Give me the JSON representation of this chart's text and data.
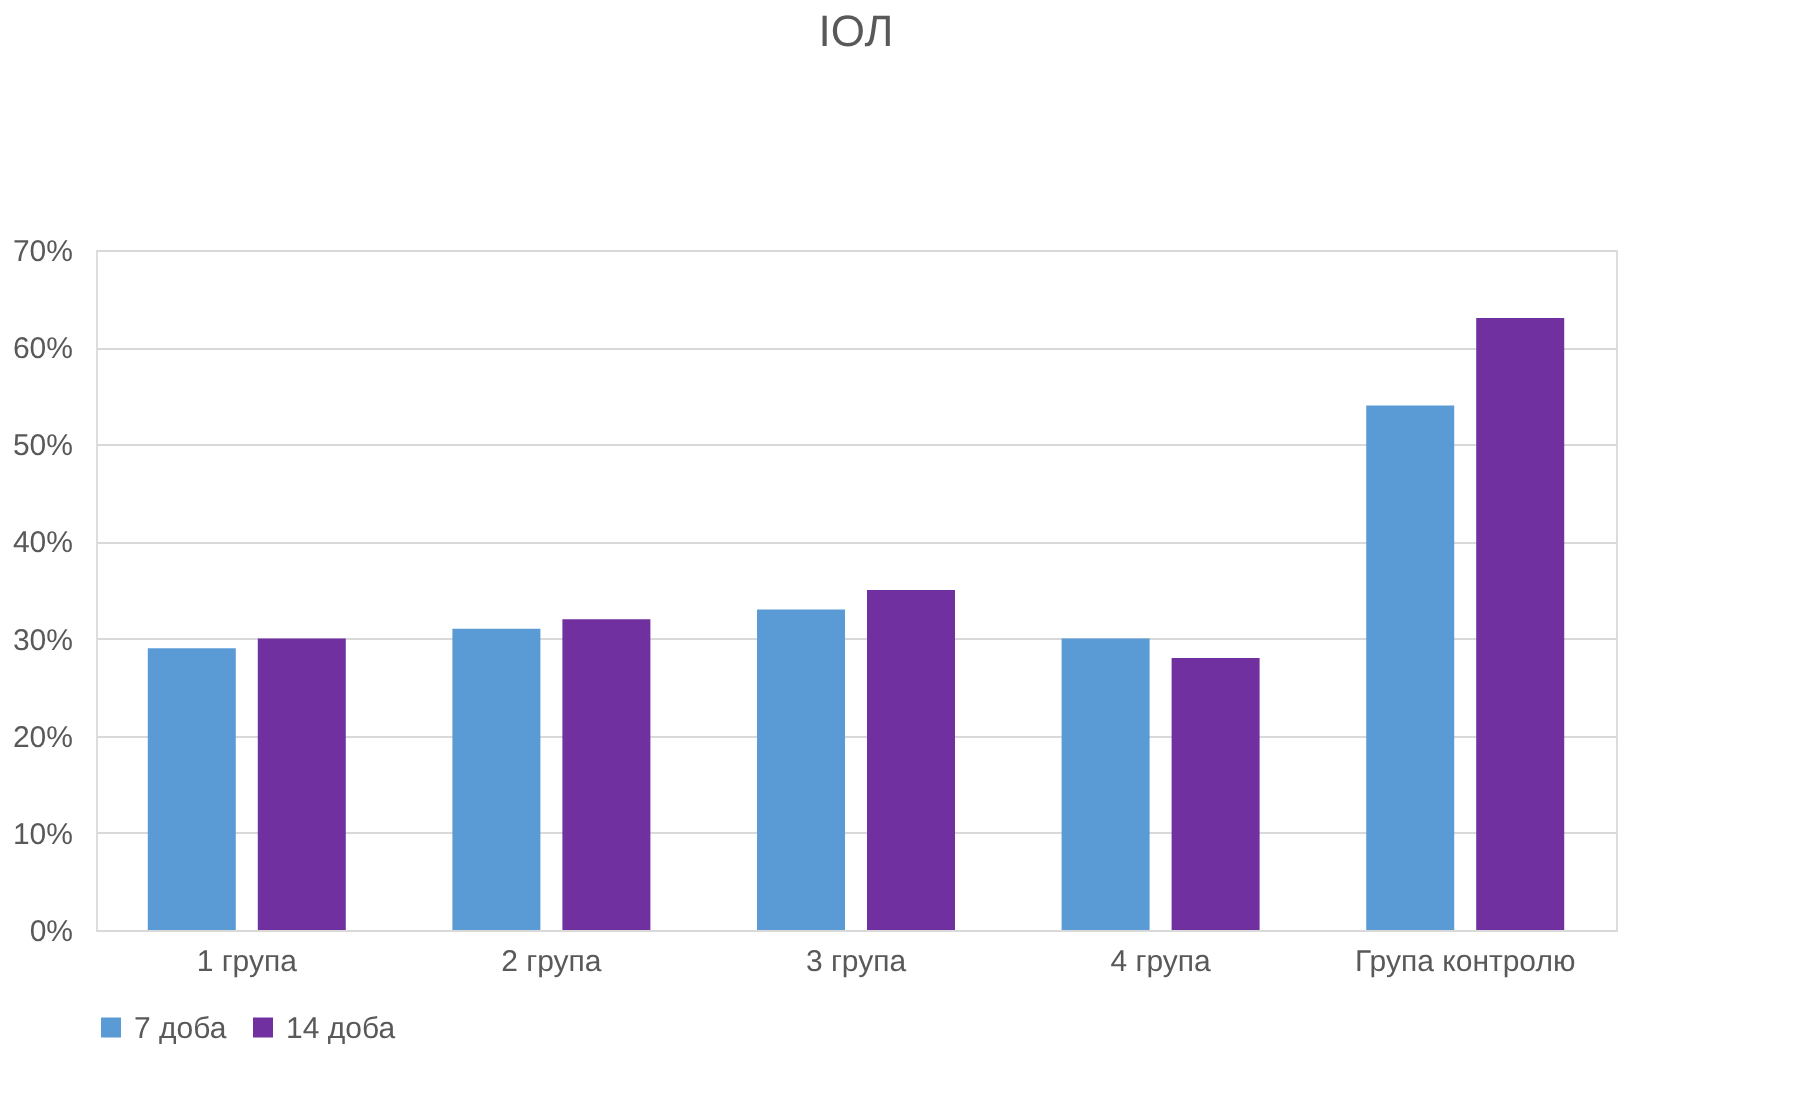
{
  "chart_data": {
    "type": "bar",
    "title": "ІОЛ",
    "categories": [
      "1 група",
      "2 група",
      "3 група",
      "4 група",
      "Група контролю"
    ],
    "series": [
      {
        "name": "7 доба",
        "color": "#5b9bd5",
        "values": [
          29,
          31,
          33,
          30,
          54
        ]
      },
      {
        "name": "14 доба",
        "color": "#7030a0",
        "values": [
          30,
          32,
          35,
          28,
          63
        ]
      }
    ],
    "ylim": [
      0,
      70
    ],
    "yticks": [
      {
        "value": 0,
        "label": "0%"
      },
      {
        "value": 10,
        "label": "10%"
      },
      {
        "value": 20,
        "label": "20%"
      },
      {
        "value": 30,
        "label": "30%"
      },
      {
        "value": 40,
        "label": "40%"
      },
      {
        "value": 50,
        "label": "50%"
      },
      {
        "value": 60,
        "label": "60%"
      },
      {
        "value": 70,
        "label": "70%"
      }
    ],
    "grid": "y",
    "legend": "bottom"
  }
}
